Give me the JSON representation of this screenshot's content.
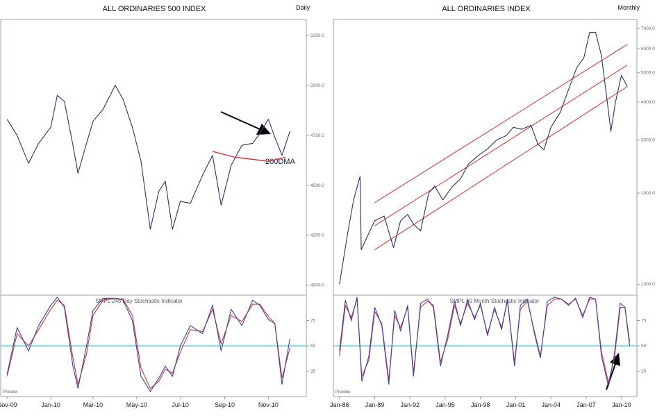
{
  "chart_data": [
    {
      "type": "line",
      "title": "ALL ORDINARIES 500 INDEX",
      "period": "Daily",
      "y_scale": "linear",
      "ylim": [
        3950,
        5330
      ],
      "y_ticks": [
        "5250.0",
        "5000.0",
        "4750.0",
        "4500.0",
        "4250.0",
        "4000.0"
      ],
      "x_ticks": [
        "Nov-09",
        "Jan-10",
        "Mar-10",
        "May-10",
        "Jul-10",
        "Sep-10",
        "Nov-10"
      ],
      "series": [
        {
          "color": "#2a2f72",
          "x": [
            "2009-11-01",
            "2009-11-15",
            "2009-12-01",
            "2009-12-15",
            "2010-01-01",
            "2010-01-10",
            "2010-01-20",
            "2010-02-01",
            "2010-02-08",
            "2010-02-20",
            "2010-03-01",
            "2010-03-15",
            "2010-04-01",
            "2010-04-12",
            "2010-04-25",
            "2010-05-07",
            "2010-05-20",
            "2010-06-01",
            "2010-06-10",
            "2010-06-20",
            "2010-07-01",
            "2010-07-15",
            "2010-08-01",
            "2010-08-15",
            "2010-08-27",
            "2010-09-10",
            "2010-09-25",
            "2010-10-10",
            "2010-10-20",
            "2010-11-01",
            "2010-11-10",
            "2010-11-20",
            "2010-12-01"
          ],
          "values": [
            4830,
            4750,
            4610,
            4710,
            4790,
            4950,
            4920,
            4700,
            4560,
            4710,
            4820,
            4880,
            5000,
            4930,
            4790,
            4620,
            4280,
            4470,
            4520,
            4280,
            4420,
            4410,
            4550,
            4650,
            4400,
            4600,
            4700,
            4710,
            4760,
            4830,
            4740,
            4650,
            4770
          ]
        },
        {
          "name": "200DMA",
          "color": "#d63030",
          "x": [
            "2010-08-15",
            "2010-09-15",
            "2010-10-10",
            "2010-11-01",
            "2010-11-25"
          ],
          "values": [
            4670,
            4640,
            4630,
            4620,
            4640
          ]
        }
      ],
      "annotations": [
        {
          "text": "200DMA"
        },
        {
          "type": "arrow",
          "target": "200DMA"
        }
      ],
      "indicator": {
        "title": "SMPL 245 Day Stochastic Indicator",
        "ylim": [
          0,
          100
        ],
        "y_ticks": [
          "75",
          "50",
          "25"
        ],
        "reference_line": 50,
        "source": "Proview",
        "x": [
          "2009-11-01",
          "2009-11-15",
          "2009-12-01",
          "2009-12-15",
          "2010-01-01",
          "2010-01-10",
          "2010-01-20",
          "2010-02-01",
          "2010-02-08",
          "2010-02-20",
          "2010-03-01",
          "2010-03-15",
          "2010-04-01",
          "2010-04-12",
          "2010-04-25",
          "2010-05-07",
          "2010-05-20",
          "2010-06-01",
          "2010-06-10",
          "2010-06-20",
          "2010-07-01",
          "2010-07-15",
          "2010-08-01",
          "2010-08-15",
          "2010-08-27",
          "2010-09-10",
          "2010-09-25",
          "2010-10-10",
          "2010-10-20",
          "2010-11-01",
          "2010-11-10",
          "2010-11-20",
          "2010-12-01"
        ],
        "k": [
          22,
          68,
          45,
          70,
          90,
          98,
          88,
          30,
          8,
          50,
          85,
          97,
          97,
          95,
          75,
          20,
          5,
          18,
          30,
          20,
          50,
          70,
          62,
          90,
          45,
          86,
          70,
          95,
          90,
          76,
          72,
          12,
          57
        ],
        "d": [
          20,
          62,
          50,
          66,
          86,
          95,
          90,
          38,
          12,
          42,
          80,
          95,
          97,
          96,
          80,
          28,
          8,
          15,
          27,
          23,
          44,
          66,
          64,
          86,
          52,
          80,
          74,
          91,
          91,
          79,
          72,
          18,
          48
        ]
      }
    },
    {
      "type": "line",
      "title": "ALL ORDINARIES INDEX",
      "period": "Monthly",
      "y_scale": "log",
      "ylim": [
        920,
        7500
      ],
      "y_ticks": [
        "7000.0",
        "6000.0",
        "5000.0",
        "4000.0",
        "3000.0",
        "2000.0",
        "1000.0"
      ],
      "x_ticks": [
        "Jan-86",
        "Jan-89",
        "Jan-92",
        "Jan-95",
        "Jan-98",
        "Jan-01",
        "Jan-04",
        "Jan-07",
        "Jan-10"
      ],
      "series": [
        {
          "color": "#2a2f72",
          "x": [
            1986.0,
            1986.6,
            1987.2,
            1987.75,
            1987.85,
            1988.3,
            1989.0,
            1989.8,
            1990.6,
            1991.2,
            1991.8,
            1992.3,
            1992.9,
            1993.6,
            1994.1,
            1994.8,
            1995.6,
            1996.3,
            1997.0,
            1997.8,
            1998.6,
            1999.4,
            2000.2,
            2000.8,
            2001.5,
            2002.3,
            2002.9,
            2003.4,
            2004.0,
            2004.8,
            2005.5,
            2006.2,
            2006.8,
            2007.3,
            2007.8,
            2008.3,
            2008.8,
            2009.1,
            2009.5,
            2010.0,
            2010.5
          ],
          "values": [
            1000,
            1400,
            1900,
            2270,
            1300,
            1420,
            1620,
            1680,
            1320,
            1620,
            1700,
            1580,
            1500,
            2000,
            2110,
            1900,
            2100,
            2230,
            2500,
            2660,
            2800,
            3000,
            3100,
            3300,
            3250,
            3350,
            2900,
            2780,
            3300,
            3700,
            4400,
            5200,
            5600,
            6800,
            6800,
            5700,
            4000,
            3200,
            4000,
            4900,
            4500
          ]
        }
      ],
      "channel": {
        "color": "#d63030",
        "lines": [
          {
            "x": [
              1989.0,
              2010.5
            ],
            "values": [
              1860,
              6200
            ]
          },
          {
            "x": [
              1989.0,
              2010.5
            ],
            "values": [
              1560,
              5300
            ]
          },
          {
            "x": [
              1989.0,
              2010.5
            ],
            "values": [
              1300,
              4500
            ]
          }
        ]
      },
      "indicator": {
        "title": "SMPL 60 Month Stochastic Indicator",
        "ylim": [
          0,
          100
        ],
        "y_ticks": [
          "75",
          "50",
          "25"
        ],
        "reference_line": 50,
        "source": "Proview",
        "annotation": {
          "type": "arrow"
        },
        "x": [
          1986.0,
          1986.5,
          1987.0,
          1987.5,
          1987.9,
          1988.5,
          1989.0,
          1989.6,
          1990.2,
          1990.7,
          1991.2,
          1991.8,
          1992.3,
          1992.9,
          1993.5,
          1994.0,
          1994.6,
          1995.2,
          1995.8,
          1996.3,
          1996.9,
          1997.5,
          1998.0,
          1998.6,
          1999.2,
          1999.8,
          2000.3,
          2000.9,
          2001.4,
          2002.0,
          2002.6,
          2003.1,
          2003.7,
          2004.3,
          2004.9,
          2005.5,
          2006.1,
          2006.7,
          2007.3,
          2007.8,
          2008.3,
          2008.9,
          2009.4,
          2009.9,
          2010.3,
          2010.7
        ],
        "k": [
          45,
          95,
          75,
          98,
          15,
          40,
          88,
          70,
          12,
          85,
          65,
          90,
          20,
          92,
          96,
          88,
          30,
          60,
          94,
          70,
          95,
          76,
          92,
          60,
          88,
          66,
          96,
          30,
          90,
          96,
          62,
          38,
          94,
          98,
          96,
          90,
          97,
          78,
          98,
          96,
          40,
          10,
          42,
          92,
          88,
          50
        ],
        "d": [
          40,
          90,
          78,
          96,
          20,
          36,
          84,
          72,
          16,
          80,
          68,
          88,
          24,
          88,
          94,
          90,
          34,
          56,
          90,
          72,
          92,
          78,
          90,
          62,
          86,
          68,
          94,
          34,
          86,
          94,
          64,
          40,
          90,
          96,
          96,
          91,
          96,
          80,
          96,
          96,
          44,
          14,
          38,
          88,
          88,
          54
        ]
      }
    }
  ]
}
